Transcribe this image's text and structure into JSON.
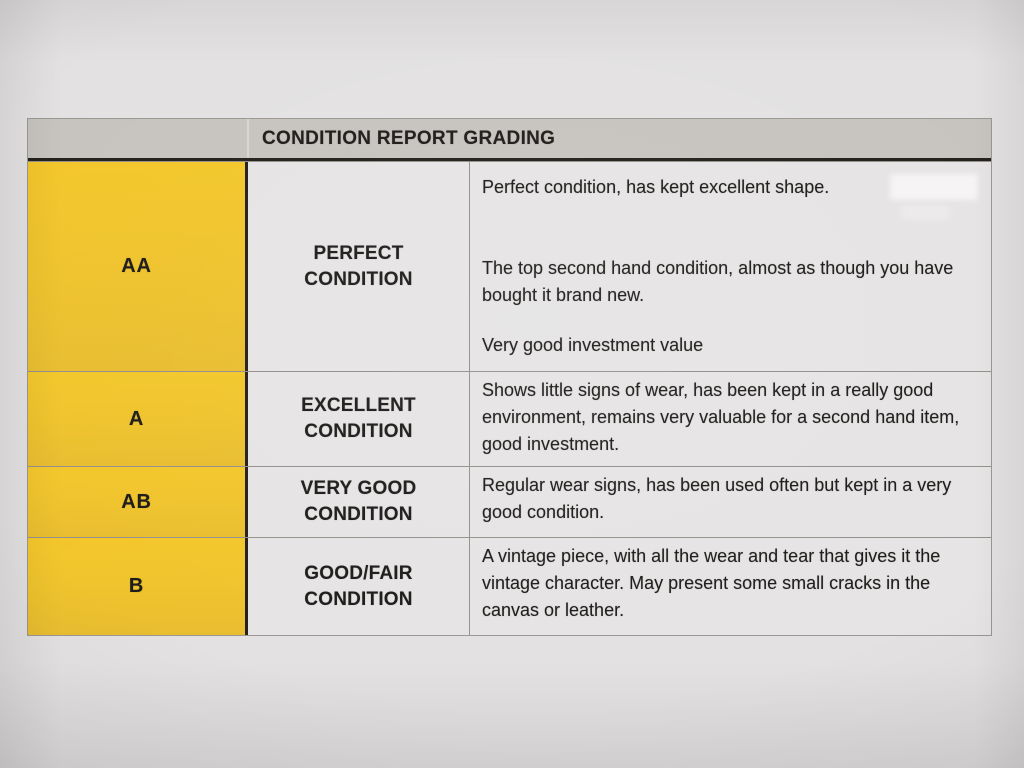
{
  "table": {
    "title": "CONDITION REPORT GRADING",
    "rows": [
      {
        "grade": "AA",
        "label_lines": [
          "PERFECT",
          "CONDITION"
        ],
        "paragraphs": [
          "Perfect condition, has kept excellent shape.",
          "The top second hand condition, almost as though you have bought it brand new.",
          "Very good investment value"
        ]
      },
      {
        "grade": "A",
        "label_lines": [
          "EXCELLENT",
          "CONDITION"
        ],
        "paragraphs": [
          "Shows little signs of wear, has been kept in a really good environment, remains very valuable for a second hand item, good investment."
        ]
      },
      {
        "grade": "AB",
        "label_lines": [
          "VERY GOOD",
          "CONDITION"
        ],
        "paragraphs": [
          "Regular wear signs, has been used often but kept in a very good condition."
        ]
      },
      {
        "grade": "B",
        "label_lines": [
          "GOOD/FAIR",
          "CONDITION"
        ],
        "paragraphs": [
          "A vintage piece, with all the wear and tear that gives it the vintage character. May present some small cracks in the canvas or leather."
        ]
      }
    ]
  },
  "colors": {
    "paper": "#e3e1e2",
    "header-bg": "#c7c3bf",
    "grade-bg": "#efc32d",
    "cell-bg": "#e6e4e4",
    "text": "#1d1c1a",
    "line": "#94908c",
    "heavy-line": "#23201c"
  }
}
